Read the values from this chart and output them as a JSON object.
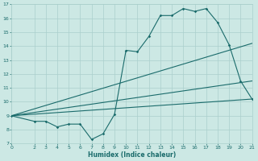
{
  "xlabel": "Humidex (Indice chaleur)",
  "bg_color": "#cce8e4",
  "grid_color": "#aacfcc",
  "line_color": "#1a6b6b",
  "xlim": [
    0,
    21
  ],
  "ylim": [
    7,
    17
  ],
  "xticks": [
    0,
    2,
    3,
    4,
    5,
    6,
    7,
    8,
    9,
    10,
    11,
    12,
    13,
    14,
    15,
    16,
    17,
    18,
    19,
    20,
    21
  ],
  "yticks": [
    7,
    8,
    9,
    10,
    11,
    12,
    13,
    14,
    15,
    16,
    17
  ],
  "series": [
    [
      0,
      9.0
    ],
    [
      2,
      8.6
    ],
    [
      3,
      8.6
    ],
    [
      4,
      8.2
    ],
    [
      5,
      8.4
    ],
    [
      6,
      8.4
    ],
    [
      7,
      7.3
    ],
    [
      8,
      7.7
    ],
    [
      9,
      9.1
    ],
    [
      10,
      13.7
    ],
    [
      11,
      13.6
    ],
    [
      12,
      14.7
    ],
    [
      13,
      16.2
    ],
    [
      14,
      16.2
    ],
    [
      15,
      16.7
    ],
    [
      16,
      16.5
    ],
    [
      17,
      16.7
    ],
    [
      18,
      15.7
    ],
    [
      19,
      14.1
    ],
    [
      20,
      11.5
    ],
    [
      21,
      10.2
    ]
  ],
  "diag_lines": [
    [
      [
        0,
        9.0
      ],
      [
        21,
        14.2
      ]
    ],
    [
      [
        0,
        9.0
      ],
      [
        21,
        11.5
      ]
    ],
    [
      [
        0,
        9.0
      ],
      [
        21,
        10.2
      ]
    ]
  ]
}
